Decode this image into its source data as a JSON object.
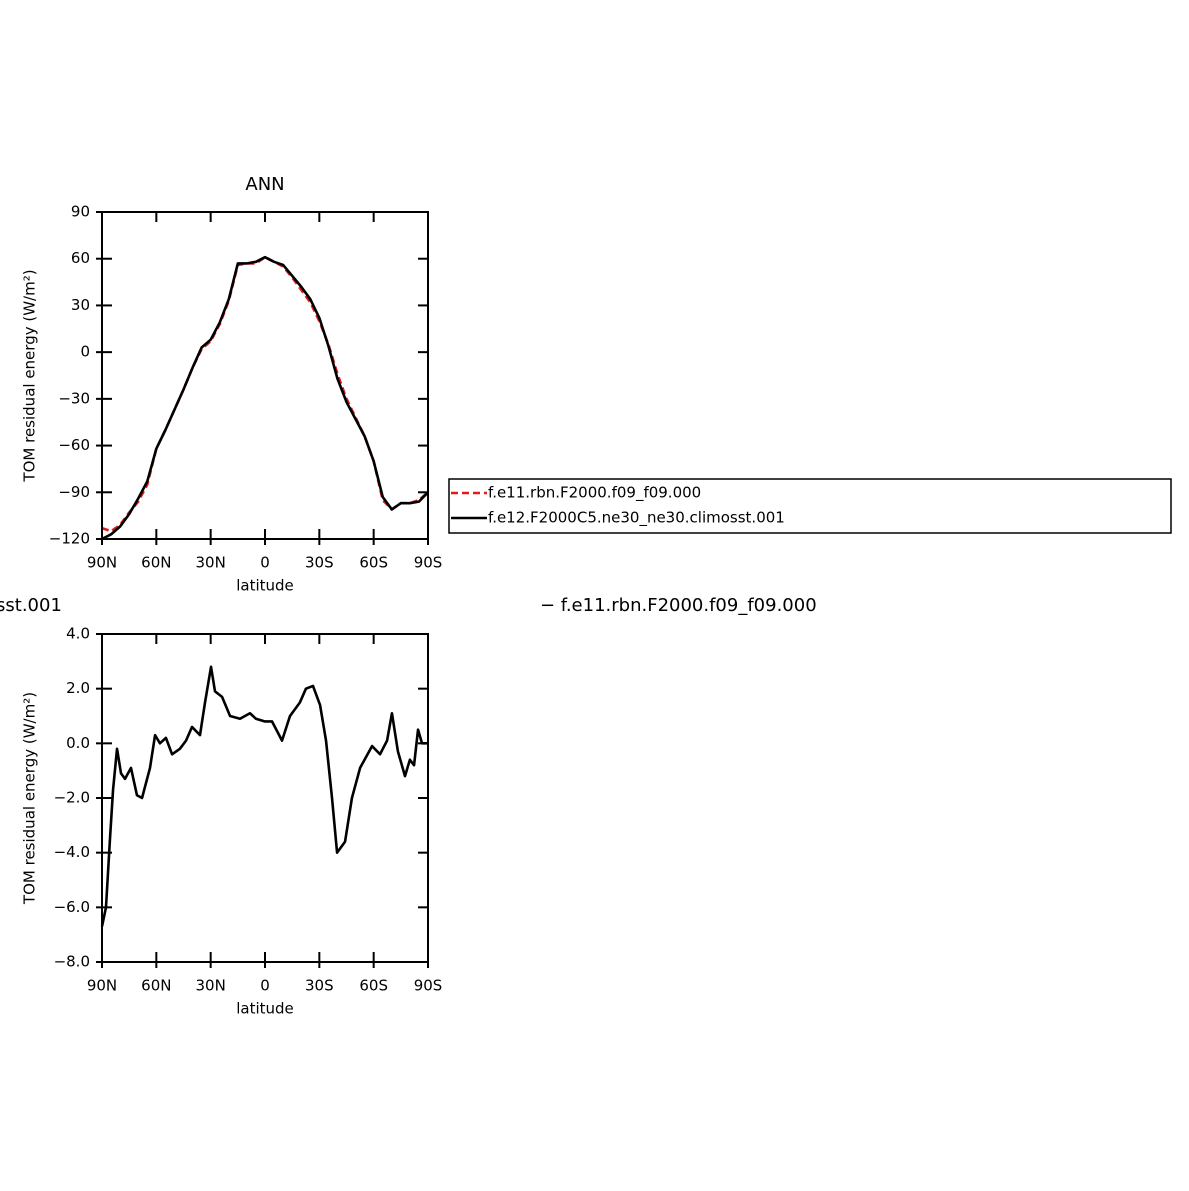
{
  "chart_data": [
    {
      "type": "line",
      "title": "ANN",
      "xlabel": "latitude",
      "ylabel": "TOM residual energy (W/m²)",
      "x": [
        90,
        85,
        80,
        75,
        70,
        65,
        60,
        55,
        50,
        45,
        40,
        35,
        30,
        25,
        20,
        15,
        10,
        5,
        0,
        -5,
        -10,
        -15,
        -20,
        -25,
        -30,
        -35,
        -40,
        -45,
        -50,
        -55,
        -60,
        -65,
        -70,
        -75,
        -80,
        -85,
        -90
      ],
      "series": [
        {
          "name": "f.e11.rbn.F2000.f09_f09.000",
          "color": "#e41a1c",
          "line_style": "dashed",
          "values": [
            -113,
            -115,
            -111,
            -103,
            -96,
            -85,
            -62,
            -50,
            -37,
            -24,
            -10,
            2,
            7,
            18,
            33,
            56,
            57,
            57,
            61,
            58,
            55,
            48,
            40,
            32,
            20,
            5,
            -14,
            -30,
            -42,
            -54,
            -70,
            -95,
            -101,
            -97,
            -97,
            -95,
            -90
          ]
        },
        {
          "name": "f.e12.F2000C5.ne30_ne30.climosst.001",
          "color": "#000000",
          "line_style": "solid",
          "values": [
            -120,
            -117,
            -112,
            -104,
            -94,
            -83,
            -62,
            -50,
            -37,
            -24,
            -10,
            3,
            8,
            19,
            34,
            57,
            57,
            58,
            61,
            58,
            56,
            49,
            42,
            34,
            22,
            4,
            -17,
            -32,
            -43,
            -54,
            -70,
            -93,
            -101,
            -97,
            -97,
            -96,
            -90
          ]
        }
      ],
      "xlim": [
        90,
        -90
      ],
      "xticks": [
        {
          "value": 90,
          "label": "90N"
        },
        {
          "value": 60,
          "label": "60N"
        },
        {
          "value": 30,
          "label": "30N"
        },
        0,
        {
          "value": -30,
          "label": "30S"
        },
        {
          "value": -60,
          "label": "60S"
        },
        {
          "value": -90,
          "label": "90S"
        }
      ],
      "ylim": [
        -120,
        90
      ],
      "yticks": [
        90,
        60,
        30,
        0,
        {
          "value": -30,
          "label": "−30"
        },
        {
          "value": -60,
          "label": "−60"
        },
        {
          "value": -90,
          "label": "−90"
        },
        {
          "value": -120,
          "label": "−120"
        }
      ],
      "legend": "right"
    },
    {
      "type": "line",
      "title_fragments": [
        "sst.001",
        "− f.e11.rbn.F2000.f09_f09.000"
      ],
      "xlabel": "latitude",
      "ylabel": "TOM residual energy (W/m²)",
      "x": [
        90,
        87.8,
        85.6,
        83.9,
        81.7,
        79.5,
        77.3,
        74,
        70.7,
        67.9,
        63.5,
        60.7,
        58,
        54.7,
        51.3,
        47,
        43.6,
        40.3,
        35.9,
        33.1,
        29.8,
        27.6,
        23.7,
        19.3,
        13.8,
        8.3,
        5,
        0,
        -3.9,
        -9.4,
        -13.8,
        -19.3,
        -22.6,
        -26.5,
        -30.4,
        -33.7,
        -37,
        -39.8,
        -44.2,
        -48,
        -52.5,
        -59.1,
        -63.5,
        -67.4,
        -70.1,
        -73.4,
        -77.3,
        -80,
        -82.3,
        -84.5,
        -86.7,
        -90
      ],
      "series": [
        {
          "color": "#000000",
          "line_style": "solid",
          "values": [
            -6.7,
            -6.0,
            -3.5,
            -1.7,
            -0.2,
            -1.1,
            -1.3,
            -0.9,
            -1.9,
            -2.0,
            -0.9,
            0.3,
            0.0,
            0.2,
            -0.4,
            -0.2,
            0.1,
            0.6,
            0.3,
            1.5,
            2.8,
            1.9,
            1.7,
            1.0,
            0.9,
            1.1,
            0.9,
            0.8,
            0.8,
            0.1,
            1.0,
            1.5,
            2.0,
            2.1,
            1.4,
            0.1,
            -2.0,
            -4.0,
            -3.6,
            -2.0,
            -0.9,
            -0.1,
            -0.4,
            0.1,
            1.1,
            -0.3,
            -1.2,
            -0.6,
            -0.8,
            0.5,
            0.0,
            0.0
          ]
        }
      ],
      "xlim": [
        90,
        -90
      ],
      "xticks": [
        {
          "value": 90,
          "label": "90N"
        },
        {
          "value": 60,
          "label": "60N"
        },
        {
          "value": 30,
          "label": "30N"
        },
        0,
        {
          "value": -30,
          "label": "30S"
        },
        {
          "value": -60,
          "label": "60S"
        },
        {
          "value": -90,
          "label": "90S"
        }
      ],
      "ylim": [
        -8,
        4
      ],
      "yticks": [
        {
          "value": 4,
          "label": "4.0"
        },
        {
          "value": 2,
          "label": "2.0"
        },
        {
          "value": 0,
          "label": "0.0"
        },
        {
          "value": -2,
          "label": "−2.0"
        },
        {
          "value": -4,
          "label": "−4.0"
        },
        {
          "value": -6,
          "label": "−6.0"
        },
        {
          "value": -8,
          "label": "−8.0"
        }
      ]
    }
  ]
}
